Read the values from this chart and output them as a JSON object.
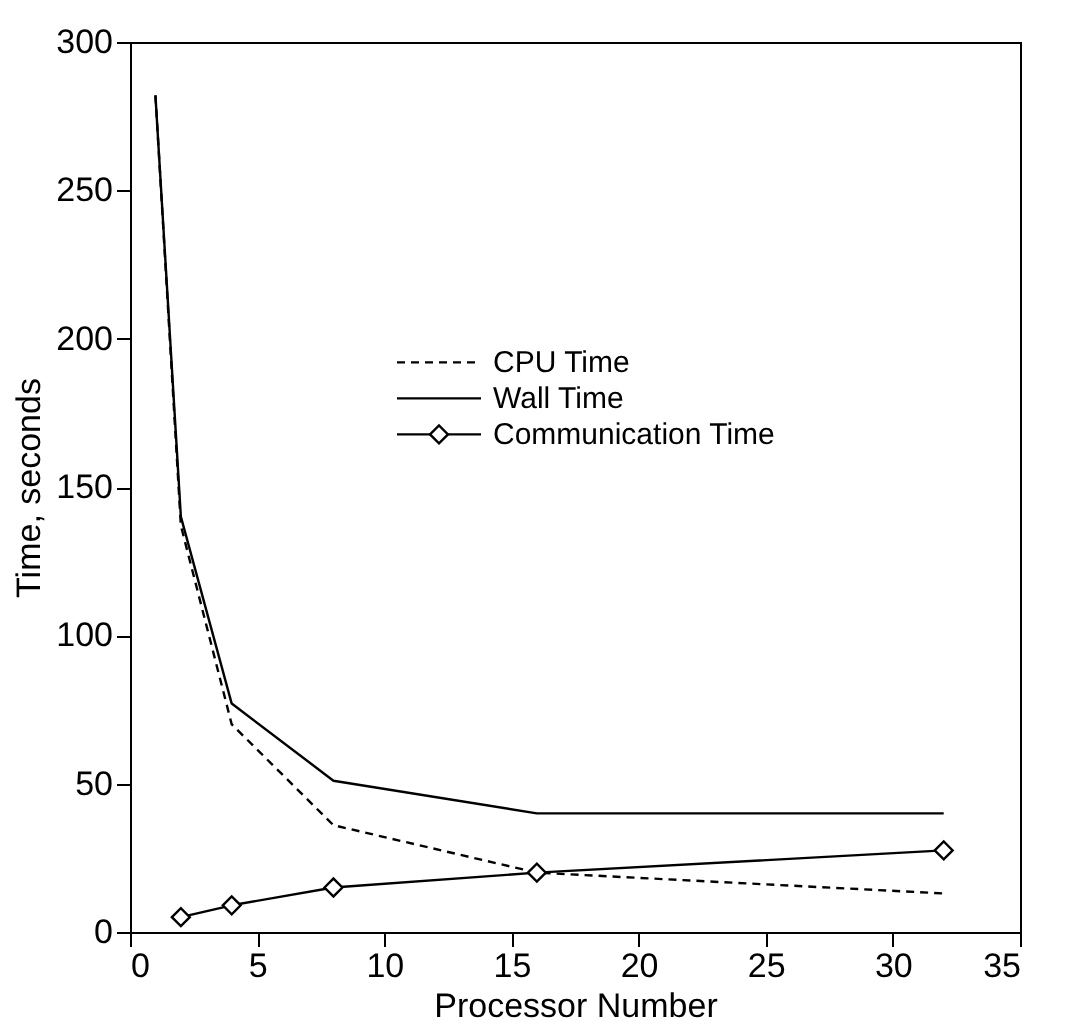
{
  "chart_data": {
    "type": "line",
    "xlabel": "Processor Number",
    "ylabel": "Time, seconds",
    "xlim": [
      0,
      35
    ],
    "xticks": [
      0,
      5,
      10,
      15,
      20,
      25,
      30,
      35
    ],
    "ylim": [
      0,
      300
    ],
    "yticks": [
      0,
      50,
      100,
      150,
      200,
      250,
      300
    ],
    "grid": false,
    "legend": "top right",
    "series": [
      {
        "name": "CPU Time",
        "color": "#000000",
        "line_style": "dashed",
        "marker": "none",
        "x": [
          1,
          2,
          4,
          8,
          16,
          32
        ],
        "values": [
          282,
          137,
          70,
          36,
          20,
          13
        ]
      },
      {
        "name": "Wall Time",
        "color": "#000000",
        "line_style": "solid",
        "marker": "none",
        "x": [
          1,
          2,
          4,
          8,
          16,
          32
        ],
        "values": [
          282,
          140,
          77,
          51,
          40,
          40
        ]
      },
      {
        "name": "Communication Time",
        "color": "#000000",
        "line_style": "solid",
        "marker": "diamond",
        "x": [
          2,
          4,
          8,
          16,
          32
        ],
        "values": [
          5,
          9,
          15,
          20,
          27.5
        ]
      }
    ]
  }
}
